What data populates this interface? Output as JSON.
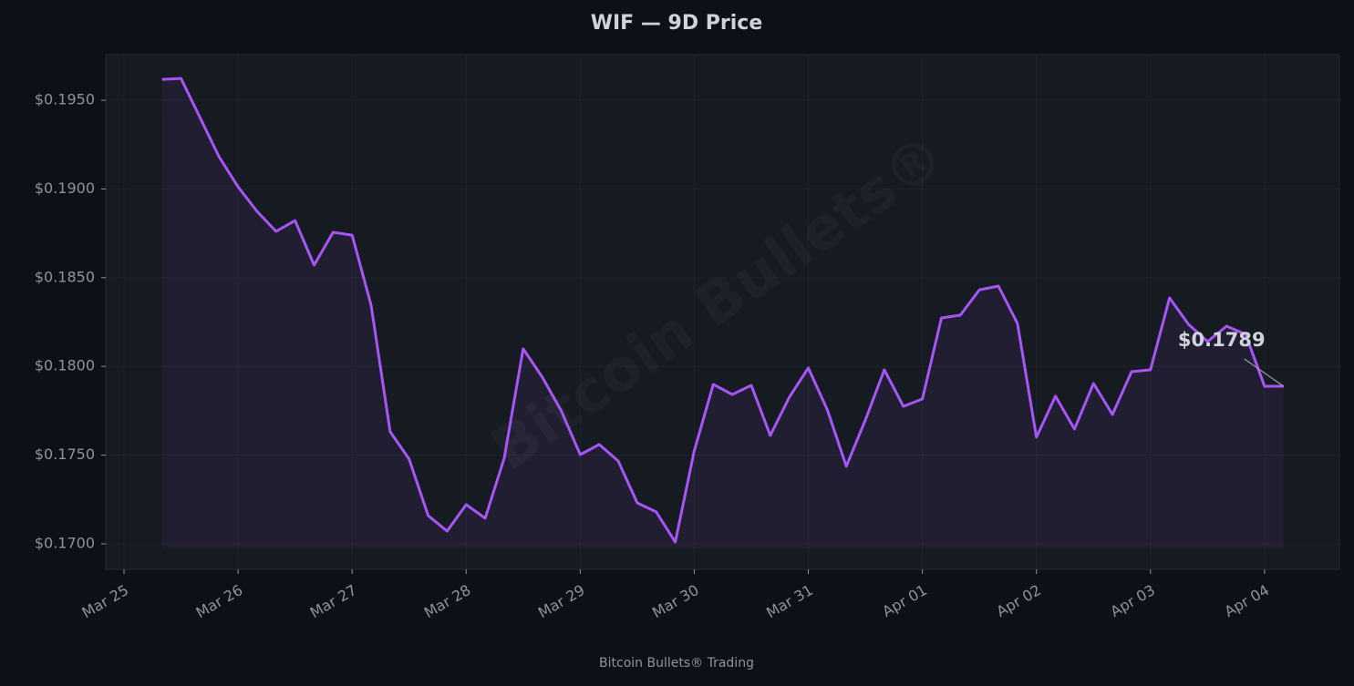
{
  "chart_data": {
    "type": "line",
    "title": "WIF — 9D Price",
    "x": [
      "Mar 25 08:00",
      "Mar 25 12:00",
      "Mar 25 16:00",
      "Mar 25 20:00",
      "Mar 26 00:00",
      "Mar 26 04:00",
      "Mar 26 08:00",
      "Mar 26 12:00",
      "Mar 26 16:00",
      "Mar 26 20:00",
      "Mar 27 00:00",
      "Mar 27 04:00",
      "Mar 27 08:00",
      "Mar 27 12:00",
      "Mar 27 16:00",
      "Mar 27 20:00",
      "Mar 28 00:00",
      "Mar 28 04:00",
      "Mar 28 08:00",
      "Mar 28 12:00",
      "Mar 28 16:00",
      "Mar 28 20:00",
      "Mar 29 00:00",
      "Mar 29 04:00",
      "Mar 29 08:00",
      "Mar 29 12:00",
      "Mar 29 16:00",
      "Mar 29 20:00",
      "Mar 30 00:00",
      "Mar 30 04:00",
      "Mar 30 08:00",
      "Mar 30 12:00",
      "Mar 30 16:00",
      "Mar 30 20:00",
      "Mar 31 00:00",
      "Mar 31 04:00",
      "Mar 31 08:00",
      "Mar 31 12:00",
      "Mar 31 16:00",
      "Mar 31 20:00",
      "Apr 01 00:00",
      "Apr 01 04:00",
      "Apr 01 08:00",
      "Apr 01 12:00",
      "Apr 01 16:00",
      "Apr 01 20:00",
      "Apr 02 00:00",
      "Apr 02 04:00",
      "Apr 02 08:00",
      "Apr 02 12:00",
      "Apr 02 16:00",
      "Apr 02 20:00",
      "Apr 03 00:00",
      "Apr 03 04:00",
      "Apr 03 08:00",
      "Apr 03 12:00",
      "Apr 03 16:00",
      "Apr 03 20:00",
      "Apr 04 00:00",
      "Apr 04 04:00"
    ],
    "series": [
      {
        "name": "WIF",
        "color": "#a855f7",
        "values": [
          0.19618,
          0.19623,
          0.19402,
          0.19182,
          0.19012,
          0.18874,
          0.18761,
          0.18822,
          0.18571,
          0.18756,
          0.1874,
          0.18345,
          0.17632,
          0.17478,
          0.17159,
          0.17072,
          0.17221,
          0.17144,
          0.17483,
          0.18099,
          0.1794,
          0.1775,
          0.17503,
          0.1756,
          0.17467,
          0.17231,
          0.1718,
          0.1701,
          0.17524,
          0.17899,
          0.17842,
          0.17893,
          0.17611,
          0.17827,
          0.17991,
          0.17755,
          0.17437,
          0.17698,
          0.17981,
          0.17775,
          0.17816,
          0.18273,
          0.18289,
          0.18432,
          0.18453,
          0.18242,
          0.17601,
          0.17832,
          0.17647,
          0.17904,
          0.17729,
          0.1797,
          0.17981,
          0.18386,
          0.18237,
          0.1814,
          0.18227,
          0.18181,
          0.17888,
          0.17888
        ]
      }
    ],
    "annotation": "$0.1789",
    "watermark": "Bitcoin Bullets®",
    "footer": "Bitcoin Bullets® Trading",
    "xlim": [
      "Mar 24 20:10",
      "Apr 04 15:45"
    ],
    "xticks": [
      "Mar 25",
      "Mar 26",
      "Mar 27",
      "Mar 28",
      "Mar 29",
      "Mar 30",
      "Mar 31",
      "Apr 01",
      "Apr 02",
      "Apr 03",
      "Apr 04"
    ],
    "ylim": [
      0.16856,
      0.19757
    ],
    "yticks": [
      {
        "value": 0.17,
        "label": "$0.1700"
      },
      {
        "value": 0.175,
        "label": "$0.1750"
      },
      {
        "value": 0.18,
        "label": "$0.1800"
      },
      {
        "value": 0.185,
        "label": "$0.1850"
      },
      {
        "value": 0.19,
        "label": "$0.1900"
      },
      {
        "value": 0.195,
        "label": "$0.1950"
      }
    ],
    "grid": true
  }
}
